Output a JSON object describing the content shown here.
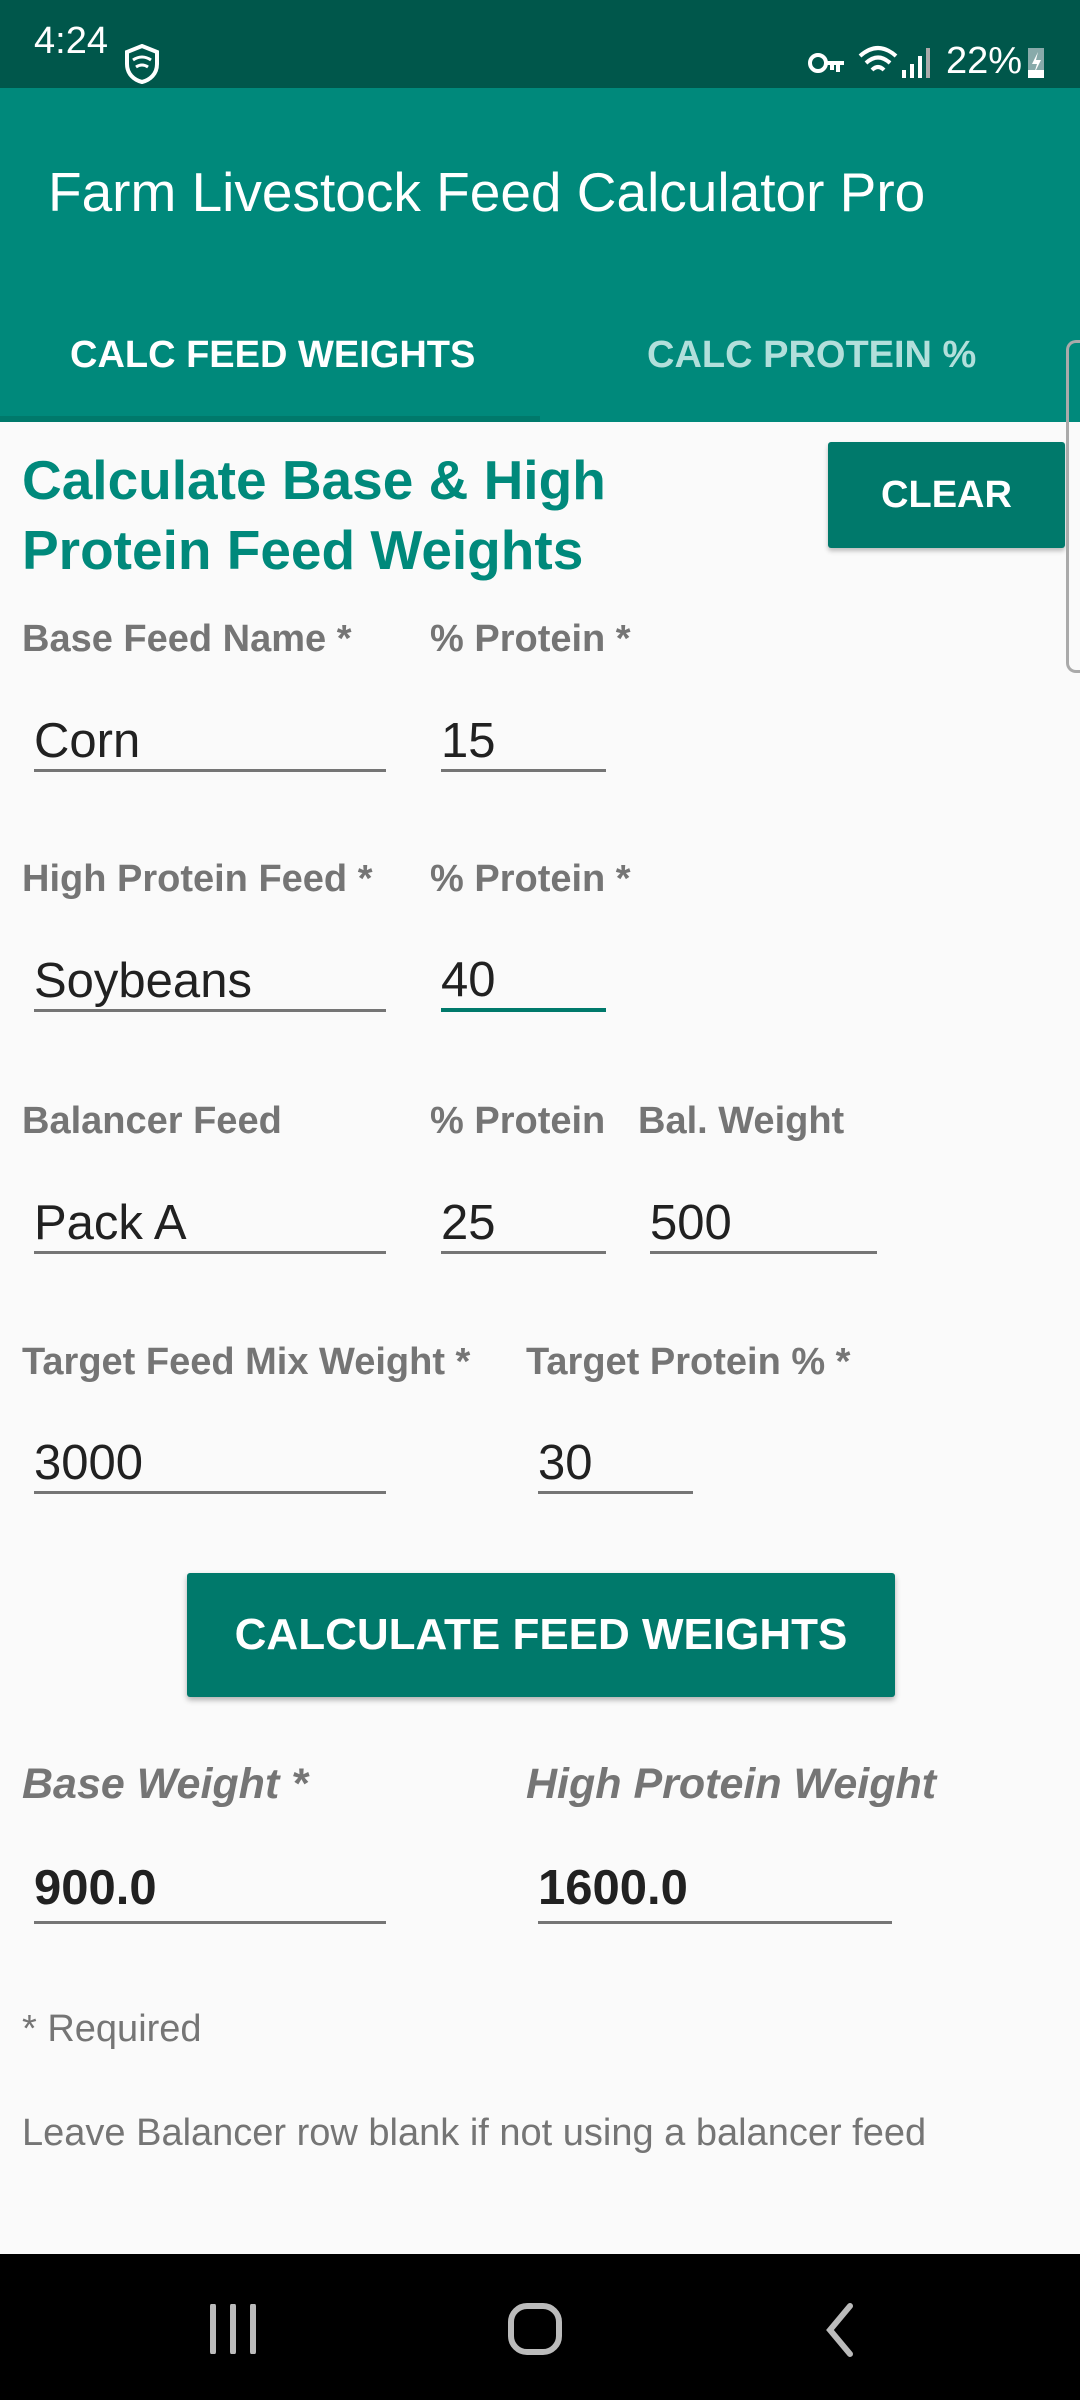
{
  "status": {
    "time": "4:24",
    "battery": "22%"
  },
  "app": {
    "title": "Farm Livestock Feed Calculator Pro"
  },
  "tabs": [
    {
      "label": "CALC FEED WEIGHTS",
      "active": true
    },
    {
      "label": "CALC PROTEIN %",
      "active": false
    }
  ],
  "form": {
    "heading": "Calculate Base & High Protein Feed Weights",
    "clear_label": "CLEAR",
    "base": {
      "name_label": "Base Feed Name *",
      "name": "Corn",
      "protein_label": "% Protein *",
      "protein": "15"
    },
    "high": {
      "name_label": "High Protein Feed *",
      "name": "Soybeans",
      "protein_label": "% Protein *",
      "protein": "40"
    },
    "balancer": {
      "name_label": "Balancer Feed",
      "name": "Pack A",
      "protein_label": "% Protein",
      "protein": "25",
      "weight_label": "Bal. Weight",
      "weight": "500"
    },
    "target": {
      "weight_label": "Target Feed Mix Weight *",
      "weight": "3000",
      "protein_label": "Target Protein % *",
      "protein": "30"
    },
    "calc_label": "CALCULATE FEED WEIGHTS",
    "results": {
      "base_label": "Base Weight *",
      "base": "900.0",
      "high_label": "High Protein Weight",
      "high": "1600.0"
    },
    "required_note": "* Required",
    "balancer_note": "Leave Balancer row blank if not using a balancer feed"
  },
  "colors": {
    "primary": "#00897b",
    "primary_dark": "#00574b",
    "accent": "#00796b"
  }
}
